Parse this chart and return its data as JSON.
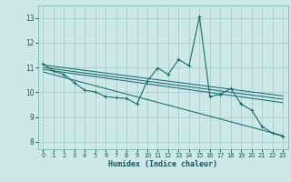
{
  "title": "",
  "xlabel": "Humidex (Indice chaleur)",
  "xlim": [
    -0.5,
    23.5
  ],
  "ylim": [
    7.7,
    13.5
  ],
  "yticks": [
    8,
    9,
    10,
    11,
    12,
    13
  ],
  "xticks": [
    0,
    1,
    2,
    3,
    4,
    5,
    6,
    7,
    8,
    9,
    10,
    11,
    12,
    13,
    14,
    15,
    16,
    17,
    18,
    19,
    20,
    21,
    22,
    23
  ],
  "bg_color": "#cce8e8",
  "grid_color": "#aacccc",
  "line_color": "#1a6b6b",
  "jagged": {
    "x": [
      0,
      1,
      2,
      3,
      4,
      5,
      6,
      7,
      8,
      9,
      10,
      11,
      12,
      13,
      14,
      15,
      16,
      17,
      18,
      19,
      20,
      21,
      22,
      23
    ],
    "y": [
      11.15,
      10.85,
      10.72,
      10.38,
      10.08,
      10.02,
      9.82,
      9.78,
      9.75,
      9.52,
      10.45,
      10.98,
      10.72,
      11.32,
      11.07,
      13.05,
      9.82,
      9.92,
      10.15,
      9.52,
      9.28,
      8.62,
      8.35,
      8.22
    ]
  },
  "line1": {
    "x": [
      0,
      23
    ],
    "y": [
      11.1,
      9.85
    ]
  },
  "line2": {
    "x": [
      0,
      23
    ],
    "y": [
      11.0,
      9.72
    ]
  },
  "line3": {
    "x": [
      0,
      23
    ],
    "y": [
      10.92,
      9.58
    ]
  },
  "line4": {
    "x": [
      0,
      23
    ],
    "y": [
      10.82,
      8.25
    ]
  }
}
